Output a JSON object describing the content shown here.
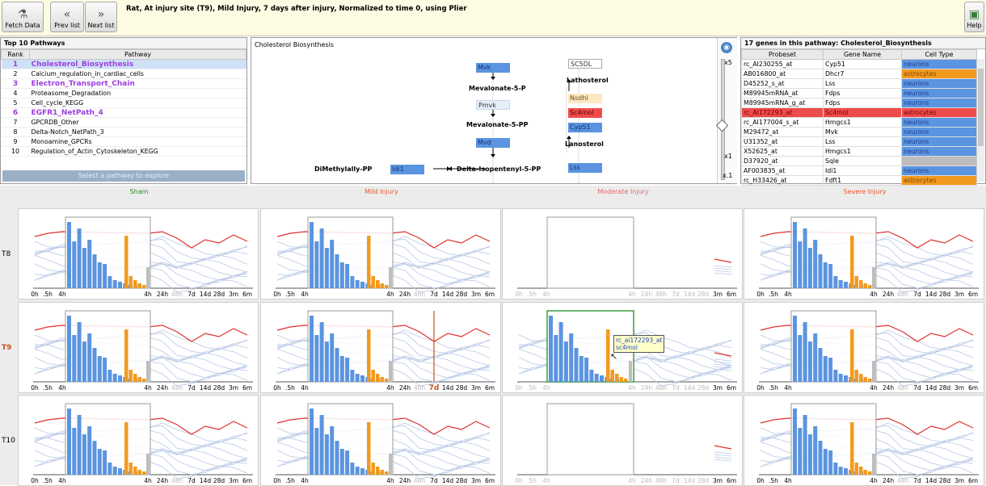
{
  "toolbar": {
    "fetch_label": "Fetch Data",
    "prev_label": "Prev list",
    "next_label": "Next list",
    "help_label": "Help",
    "title": "Rat, At injury site (T9), Mild Injury, 7 days after injury, Normalized to time 0, using Plier"
  },
  "pathways": {
    "title": "Top 10 Pathways",
    "col_rank": "Rank",
    "col_pathway": "Pathway",
    "rows": [
      {
        "rank": "1",
        "name": "Cholesterol_Biosynthesis",
        "bold": true,
        "selected": true
      },
      {
        "rank": "2",
        "name": "Calcium_regulation_in_cardiac_cells",
        "bold": false,
        "selected": false
      },
      {
        "rank": "3",
        "name": "Electron_Transport_Chain",
        "bold": true,
        "selected": false
      },
      {
        "rank": "4",
        "name": "Proteasome_Degradation",
        "bold": false,
        "selected": false
      },
      {
        "rank": "5",
        "name": "Cell_cycle_KEGG",
        "bold": false,
        "selected": false
      },
      {
        "rank": "6",
        "name": "EGFR1_NetPath_4",
        "bold": true,
        "selected": false
      },
      {
        "rank": "7",
        "name": "GPCRDB_Other",
        "bold": false,
        "selected": false
      },
      {
        "rank": "8",
        "name": "Delta-Notch_NetPath_3",
        "bold": false,
        "selected": false
      },
      {
        "rank": "9",
        "name": "Monoamine_GPCRs",
        "bold": false,
        "selected": false
      },
      {
        "rank": "10",
        "name": "Regulation_of_Actin_Cytoskeleton_KEGG",
        "bold": false,
        "selected": false
      }
    ],
    "select_label": "Select a pathway to explore"
  },
  "diagram": {
    "title": "Cholesterol Biosynthesis",
    "zoom_top": "x5",
    "zoom_mid": "x1",
    "zoom_bot": "x.1",
    "zoom_level": 0.55,
    "genes": {
      "mvk": "Mvk",
      "pmvk": "Pmvk",
      "mvd": "Mvd",
      "idi1": "Idi1",
      "lss": "Lss",
      "sc5dl": "SC5DL",
      "nsdhl": "Nsdhl",
      "sc4mol": "Sc4mol",
      "cyp51": "Cyp51"
    },
    "metabolites": {
      "mev5p": "Mevalonate-5-P",
      "mev5pp": "Mevalonate-5-PP",
      "dmpp": "DiMethylally-PP",
      "dipp": "Delta-Isopentenyl-5-PP",
      "latho": "Lathosterol",
      "lano": "Lanosterol"
    }
  },
  "genes_panel": {
    "title": "17 genes in this pathway: Cholesterol_Biosynthesis",
    "col_probe": "Probeset",
    "col_gene": "Gene Name",
    "col_cell": "Cell Type",
    "rows": [
      {
        "probe": "rc_AI230255_at",
        "gene": "Cyp51",
        "cell": "neurons",
        "type": "neur",
        "highlight": false
      },
      {
        "probe": "AB016800_at",
        "gene": "Dhcr7",
        "cell": "astrocytes",
        "type": "astro",
        "highlight": false
      },
      {
        "probe": "D45252_s_at",
        "gene": "Lss",
        "cell": "neurons",
        "type": "neur",
        "highlight": false
      },
      {
        "probe": "M89945mRNA_at",
        "gene": "Fdps",
        "cell": "neurons",
        "type": "neur",
        "highlight": false
      },
      {
        "probe": "M89945mRNA_g_at",
        "gene": "Fdps",
        "cell": "neurons",
        "type": "neur",
        "highlight": false
      },
      {
        "probe": "rc_AI172293_at",
        "gene": "Sc4mol",
        "cell": "astrocytes",
        "type": "astro",
        "highlight": true
      },
      {
        "probe": "rc_AI177004_s_at",
        "gene": "Hmgcs1",
        "cell": "neurons",
        "type": "neur",
        "highlight": false
      },
      {
        "probe": "M29472_at",
        "gene": "Mvk",
        "cell": "neurons",
        "type": "neur",
        "highlight": false
      },
      {
        "probe": "U31352_at",
        "gene": "Lss",
        "cell": "neurons",
        "type": "neur",
        "highlight": false
      },
      {
        "probe": "X52625_at",
        "gene": "Hmgcs1",
        "cell": "neurons",
        "type": "neur",
        "highlight": false
      },
      {
        "probe": "D37920_at",
        "gene": "Sqle",
        "cell": "",
        "type": "gray",
        "highlight": false
      },
      {
        "probe": "AF003835_at",
        "gene": "Idi1",
        "cell": "neurons",
        "type": "neur",
        "highlight": false
      },
      {
        "probe": "rc_H33426_at",
        "gene": "Fdft1",
        "cell": "astrocytes",
        "type": "astro",
        "highlight": false
      }
    ]
  },
  "grid": {
    "columns": [
      {
        "label": "Sham",
        "color": "#2a8a2a"
      },
      {
        "label": "Mild Injury",
        "color": "#e8562a"
      },
      {
        "label": "Moderate Injury",
        "color": "#e06a6a"
      },
      {
        "label": "Severe Injury",
        "color": "#e8562a"
      }
    ],
    "rows": [
      {
        "label": "T8",
        "color": "#000000"
      },
      {
        "label": "T9",
        "color": "#c8501a"
      },
      {
        "label": "T10",
        "color": "#000000"
      }
    ],
    "tick_labels_full": [
      "0h",
      ".5h",
      "4h",
      "4h",
      "24h",
      "48h",
      "7d",
      "14d",
      "28d",
      "3m",
      "6m"
    ],
    "tooltip_probe": "rc_ai172293_at",
    "tooltip_gene": "sc4mol",
    "highlight_tick": "7d"
  }
}
